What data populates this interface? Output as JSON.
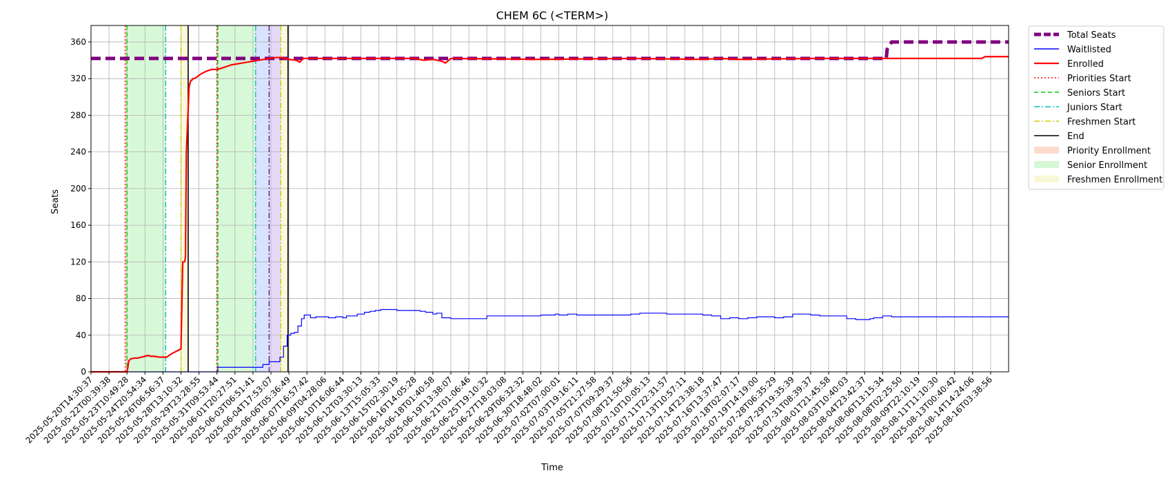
{
  "chart_data": {
    "type": "line",
    "title": "CHEM 6C (<TERM>)",
    "xlabel": "Time",
    "ylabel": "Seats",
    "ylim": [
      0,
      378
    ],
    "yticks": [
      0,
      40,
      80,
      120,
      160,
      200,
      240,
      280,
      320,
      360
    ],
    "grid": true,
    "legend_position": "outside-top-right",
    "x_tick_labels": [
      "2025-05-20T14:30:37",
      "2025-05-22T00:39:38",
      "2025-05-23T10:49:28",
      "2025-05-24T20:54:34",
      "2025-05-26T06:56:37",
      "2025-05-28T13:10:32",
      "2025-05-29T23:28:55",
      "2025-05-31T09:53:44",
      "2025-06-01T20:27:51",
      "2025-06-03T06:51:41",
      "2025-06-04T17:53:07",
      "2025-06-06T05:36:49",
      "2025-06-07T16:57:42",
      "2025-06-09T04:28:06",
      "2025-06-10T16:06:44",
      "2025-06-12T03:30:13",
      "2025-06-13T15:05:33",
      "2025-06-15T02:30:19",
      "2025-06-16T14:05:28",
      "2025-06-18T01:40:58",
      "2025-06-19T13:38:07",
      "2025-06-21T01:06:46",
      "2025-06-25T19:10:32",
      "2025-06-27T18:03:08",
      "2025-06-29T06:32:32",
      "2025-06-30T18:48:02",
      "2025-07-02T07:00:01",
      "2025-07-03T19:16:11",
      "2025-07-05T21:27:58",
      "2025-07-07T09:29:37",
      "2025-07-08T21:50:56",
      "2025-07-10T10:05:13",
      "2025-07-11T22:31:57",
      "2025-07-13T10:57:11",
      "2025-07-14T23:38:18",
      "2025-07-16T13:37:47",
      "2025-07-18T02:07:17",
      "2025-07-19T14:19:00",
      "2025-07-28T06:35:29",
      "2025-07-29T19:35:39",
      "2025-07-31T08:39:37",
      "2025-08-01T21:45:58",
      "2025-08-03T10:40:03",
      "2025-08-04T23:42:37",
      "2025-08-06T13:15:34",
      "2025-08-08T02:25:50",
      "2025-08-09T22:10:19",
      "2025-08-11T11:10:30",
      "2025-08-13T00:40:42",
      "2025-08-14T14:24:06",
      "2025-08-16T03:38:56"
    ],
    "x_index_range": [
      0,
      51
    ],
    "series": [
      {
        "name": "Total Seats",
        "color": "#800080",
        "style": "thick-dashed",
        "x": [
          0,
          44.2,
          44.25,
          44.5,
          51
        ],
        "y": [
          342,
          342,
          352,
          360,
          360
        ]
      },
      {
        "name": "Waitlisted",
        "color": "#0000ff",
        "style": "thin-step",
        "x": [
          0,
          7,
          7.05,
          9.5,
          9.55,
          9.9,
          10.1,
          10.3,
          10.5,
          10.7,
          10.9,
          11.1,
          11.3,
          11.5,
          11.7,
          11.85,
          12.2,
          12.5,
          13.2,
          13.6,
          14,
          14.2,
          14.8,
          15.2,
          15.5,
          15.8,
          16.1,
          17,
          18,
          18.3,
          18.6,
          19,
          19.2,
          19.5,
          20,
          20.3,
          20.6,
          21,
          22,
          22.5,
          22.7,
          23,
          24,
          25,
          25.4,
          25.8,
          26,
          26.5,
          27,
          28,
          29,
          29.5,
          30,
          30.5,
          31,
          32,
          33,
          33.5,
          34,
          34.5,
          34.8,
          35,
          35.5,
          36,
          36.5,
          37,
          37.5,
          38,
          38.5,
          39,
          39.5,
          40,
          40.5,
          41,
          42,
          42.5,
          43,
          43.3,
          43.5,
          44,
          44.5,
          51
        ],
        "y": [
          0,
          0,
          5,
          5,
          8,
          11,
          11,
          11,
          16,
          28,
          40,
          42,
          43,
          50,
          58,
          62,
          59,
          60,
          59,
          60,
          59,
          61,
          63,
          65,
          66,
          67,
          68,
          67,
          67,
          66,
          65,
          63,
          64,
          59,
          58,
          58,
          58,
          58,
          61,
          61,
          61,
          61,
          61,
          62,
          62,
          63,
          62,
          63,
          62,
          62,
          62,
          62,
          63,
          64,
          64,
          63,
          63,
          63,
          62,
          61,
          61,
          58,
          59,
          58,
          59,
          60,
          60,
          59,
          60,
          63,
          63,
          62,
          61,
          61,
          58,
          57,
          57,
          58,
          59,
          61,
          60,
          60
        ]
      },
      {
        "name": "Enrolled",
        "color": "#ff0000",
        "style": "solid",
        "x": [
          0,
          1.5,
          2,
          2.05,
          2.1,
          2.2,
          2.4,
          2.6,
          2.8,
          3,
          3.2,
          3.3,
          3.5,
          3.8,
          4,
          4.2,
          4.5,
          4.8,
          5,
          5.1,
          5.2,
          5.25,
          5.3,
          5.45,
          5.5,
          5.55,
          5.6,
          5.65,
          5.75,
          5.9,
          6.1,
          6.4,
          6.7,
          7,
          7.2,
          7.5,
          7.8,
          8.1,
          8.4,
          8.7,
          9,
          9.3,
          9.6,
          9.9,
          10.3,
          10.6,
          11,
          11.4,
          11.6,
          11.8,
          12,
          12.2,
          12.5,
          14,
          16,
          18,
          18.5,
          19,
          19.5,
          19.7,
          20,
          25,
          30,
          34,
          35,
          36,
          40,
          42,
          44,
          45,
          49.5,
          49.7,
          50,
          51
        ],
        "y": [
          0,
          0,
          0,
          5,
          12,
          14,
          15,
          15,
          16,
          17,
          18,
          17,
          17,
          16,
          16,
          16,
          20,
          23,
          25,
          120,
          120,
          125,
          240,
          310,
          315,
          318,
          318,
          320,
          320,
          322,
          325,
          328,
          330,
          330,
          331,
          333,
          335,
          336,
          337,
          338,
          339,
          340,
          341,
          342,
          343,
          343,
          341,
          340,
          338,
          342,
          342,
          342,
          342,
          342,
          342,
          342,
          340,
          341,
          339,
          337,
          342,
          341,
          342,
          341,
          342,
          341,
          342,
          342,
          342,
          342,
          342,
          344,
          344,
          344
        ]
      },
      {
        "name": "Priorities Start",
        "color": "#ff0000",
        "style": "dotted",
        "x": [
          1.9,
          7.0
        ]
      },
      {
        "name": "Seniors Start",
        "color": "#00cc00",
        "style": "dashed",
        "x": [
          2.0,
          7.05
        ]
      },
      {
        "name": "Juniors Start",
        "color": "#00bfbf",
        "style": "dashdot",
        "x": [
          4.15,
          9.15
        ]
      },
      {
        "name": "Freshmen Start",
        "color": "#cccc00",
        "style": "dashdot",
        "x": [
          5.0,
          10.55
        ]
      },
      {
        "name": "End",
        "color": "#000000",
        "style": "solid",
        "x": [
          5.4,
          10.95
        ]
      },
      {
        "name": "Priority Enrollment",
        "color": "#f4a582",
        "style": "band",
        "spans": [
          [
            1.9,
            2.0
          ],
          [
            7.0,
            7.05
          ]
        ]
      },
      {
        "name": "Senior Enrollment",
        "color": "#90ee90",
        "style": "band",
        "spans": [
          [
            2.0,
            4.15
          ],
          [
            7.05,
            9.15
          ]
        ]
      },
      {
        "name": "Freshmen Enrollment",
        "color": "#eeee99",
        "style": "band",
        "spans": [
          [
            5.0,
            5.4
          ],
          [
            10.55,
            10.95
          ]
        ]
      }
    ],
    "extra_bands": [
      {
        "color": "#b3c7ff",
        "span": [
          9.15,
          9.9
        ]
      },
      {
        "color": "#c9b3f0",
        "span": [
          9.9,
          10.55
        ]
      }
    ],
    "extra_vlines": [
      {
        "color": "#4b0082",
        "style": "dashdot",
        "x": 9.9
      }
    ]
  }
}
